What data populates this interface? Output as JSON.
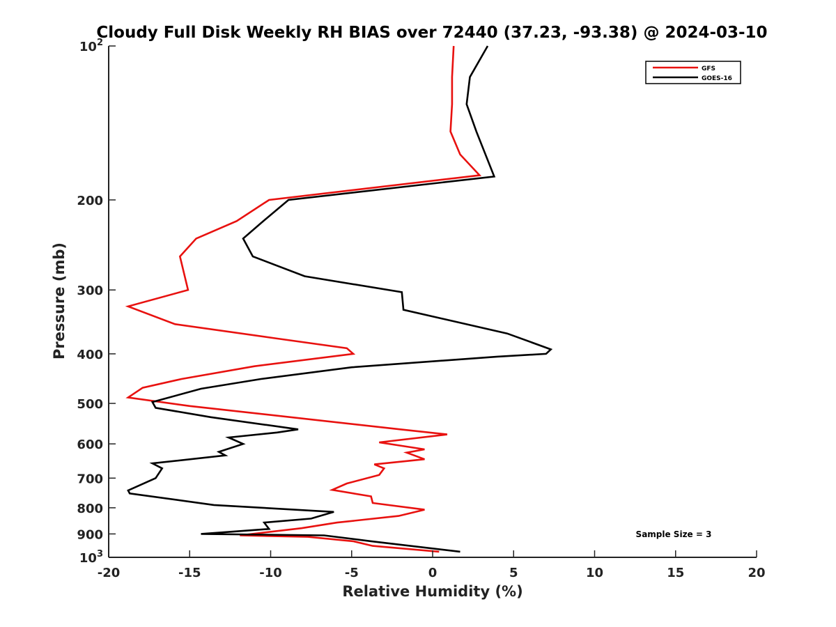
{
  "chart_data": {
    "type": "line",
    "title": "Cloudy Full Disk Weekly RH BIAS over 72440 (37.23, -93.38) @ 2024-03-10",
    "xlabel": "Relative Humidity (%)",
    "ylabel": "Pressure (mb)",
    "xlim": [
      -20,
      20
    ],
    "ylim": [
      100,
      1000
    ],
    "y_scale": "log",
    "y_reversed": true,
    "grid": false,
    "legend_position": "top-right",
    "x_ticks": [
      {
        "value": -20,
        "label": "-20"
      },
      {
        "value": -15,
        "label": "-15"
      },
      {
        "value": -10,
        "label": "-10"
      },
      {
        "value": -5,
        "label": "-5"
      },
      {
        "value": 0,
        "label": "0"
      },
      {
        "value": 5,
        "label": "5"
      },
      {
        "value": 10,
        "label": "10"
      },
      {
        "value": 15,
        "label": "15"
      },
      {
        "value": 20,
        "label": "20"
      }
    ],
    "y_ticks": [
      {
        "value": 100,
        "base": "10",
        "exp": "2"
      },
      {
        "value": 200,
        "base": "200",
        "exp": ""
      },
      {
        "value": 300,
        "base": "300",
        "exp": ""
      },
      {
        "value": 400,
        "base": "400",
        "exp": ""
      },
      {
        "value": 500,
        "base": "500",
        "exp": ""
      },
      {
        "value": 600,
        "base": "600",
        "exp": ""
      },
      {
        "value": 700,
        "base": "700",
        "exp": ""
      },
      {
        "value": 800,
        "base": "800",
        "exp": ""
      },
      {
        "value": 900,
        "base": "900",
        "exp": ""
      },
      {
        "value": 1000,
        "base": "10",
        "exp": "3"
      }
    ],
    "annotation": "Sample Size = 3",
    "series": [
      {
        "name": "GFS",
        "color": "#e8110f",
        "x": [
          1.3,
          1.2,
          1.2,
          1.1,
          1.7,
          2.9,
          -10.1,
          -12.1,
          -14.6,
          -15.6,
          -15.1,
          -18.8,
          -15.9,
          -9.7,
          -5.3,
          -4.9,
          -11.0,
          -15.5,
          -17.9,
          -18.8,
          -15.0,
          -2.0,
          0.9,
          -3.3,
          -0.5,
          -1.6,
          -0.5,
          -3.6,
          -3.0,
          -3.3,
          -5.3,
          -6.2,
          -3.8,
          -3.7,
          -0.5,
          -2.1,
          -5.9,
          -8.1,
          -11.9,
          -7.7,
          -4.9,
          -3.7,
          0.4
        ],
        "y": [
          100,
          115,
          130,
          147,
          163,
          179,
          200,
          220,
          238,
          258,
          300,
          323,
          350,
          373,
          390,
          400,
          423,
          448,
          466,
          487,
          506,
          562,
          575,
          596,
          615,
          624,
          643,
          658,
          670,
          690,
          717,
          738,
          760,
          783,
          807,
          830,
          855,
          877,
          906,
          912,
          930,
          950,
          975
        ]
      },
      {
        "name": "GOES-16",
        "color": "#000000",
        "x": [
          3.4,
          2.3,
          2.1,
          2.7,
          3.8,
          -8.9,
          -10.6,
          -11.7,
          -11.1,
          -7.9,
          -1.9,
          -1.8,
          4.6,
          7.3,
          7.0,
          4.0,
          -5.0,
          -10.6,
          -14.3,
          -17.3,
          -17.1,
          -13.7,
          -8.3,
          -9.6,
          -12.6,
          -11.7,
          -13.2,
          -12.8,
          -17.3,
          -16.7,
          -17.1,
          -18.8,
          -18.7,
          -13.5,
          -6.1,
          -7.5,
          -10.4,
          -10.1,
          -14.3,
          -6.7,
          -3.8,
          1.7
        ],
        "y": [
          100,
          115,
          130,
          147,
          180,
          200,
          222,
          238,
          258,
          282,
          303,
          328,
          365,
          392,
          400,
          405,
          425,
          448,
          468,
          497,
          510,
          532,
          562,
          570,
          583,
          600,
          622,
          632,
          655,
          670,
          700,
          740,
          750,
          790,
          815,
          840,
          855,
          880,
          900,
          906,
          930,
          975
        ]
      }
    ]
  }
}
